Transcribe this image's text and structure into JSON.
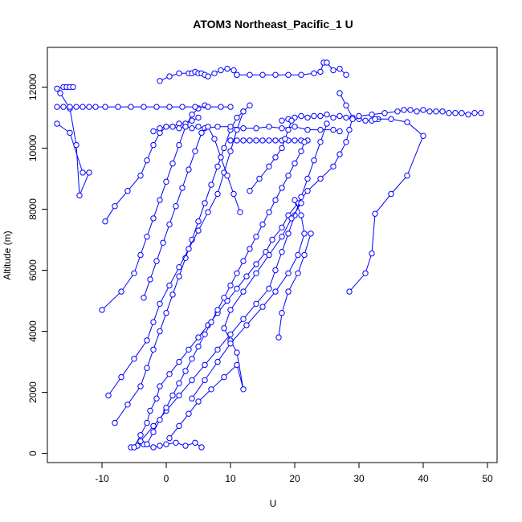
{
  "chart_data": {
    "type": "line",
    "title": "ATOM3 Northeast_Pacific_1 U",
    "xlabel": "U",
    "ylabel": "Altitude (m)",
    "xlim": [
      -18.5,
      51.5
    ],
    "ylim": [
      -300,
      13300
    ],
    "x_ticks": [
      -10,
      0,
      10,
      20,
      30,
      40,
      50
    ],
    "y_ticks": [
      0,
      2000,
      4000,
      6000,
      8000,
      10000,
      12000
    ],
    "grid": false,
    "legend": "none",
    "series_color": "#0000ff",
    "marker": "open-circle",
    "series": [
      {
        "x": [
          -5.5,
          -4.5,
          -3.5,
          -2.0,
          -1.0,
          0.0,
          1.5,
          3.0,
          4.5,
          5.5
        ],
        "y": [
          200,
          250,
          300,
          200,
          250,
          300,
          350,
          250,
          350,
          200
        ]
      },
      {
        "x": [
          -5.0,
          -4.0,
          -3.0,
          -2.5,
          -1.5,
          -1.0,
          0.5,
          2.0,
          3.5,
          5.0,
          6.5,
          8.0,
          9.5,
          11.0,
          12.5,
          14.0,
          15.5,
          16.5,
          18.0,
          19.0,
          20.5,
          22.0,
          24.0,
          26.0,
          27.0,
          28.0,
          28.5,
          29.0,
          28.0,
          27.0
        ],
        "y": [
          200,
          600,
          1000,
          1400,
          1800,
          2200,
          2600,
          3000,
          3400,
          3800,
          4200,
          4600,
          5000,
          5400,
          5800,
          6200,
          6600,
          7000,
          7400,
          7800,
          8200,
          8600,
          9000,
          9400,
          9800,
          10200,
          10600,
          11000,
          11400,
          11800
        ]
      },
      {
        "x": [
          -4.0,
          -2.0,
          0.0,
          2.0,
          4.0,
          6.0,
          8.0,
          10.0,
          12.0,
          14.0,
          16.0,
          17.0,
          18.0,
          19.0,
          20.0,
          21.0,
          22.0,
          23.0,
          24.0,
          25.0
        ],
        "y": [
          400,
          900,
          1400,
          1900,
          2400,
          2900,
          3400,
          3900,
          4400,
          4900,
          5400,
          6000,
          6600,
          7200,
          7800,
          8400,
          9000,
          9600,
          10200,
          10800
        ]
      },
      {
        "x": [
          -8.0,
          -6.0,
          -4.0,
          -3.0,
          -2.0,
          -1.0,
          0.0,
          1.0,
          2.0,
          3.0,
          4.0,
          5.0,
          6.0,
          7.0,
          8.0,
          9.0,
          10.0,
          11.0,
          12.0,
          13.0
        ],
        "y": [
          1000,
          1600,
          2200,
          2800,
          3400,
          4000,
          4600,
          5200,
          5800,
          6400,
          7000,
          7600,
          8200,
          8800,
          9400,
          10000,
          10600,
          11000,
          11200,
          11400
        ]
      },
      {
        "x": [
          -9.0,
          -7.0,
          -5.0,
          -3.0,
          -2.0,
          -1.0,
          0.5,
          2.0,
          3.5,
          5.0,
          6.5,
          8.0,
          9.0,
          10.0,
          11.0,
          12.0
        ],
        "y": [
          1900,
          2500,
          3100,
          3700,
          4300,
          4900,
          5500,
          6100,
          6700,
          7300,
          7900,
          8500,
          9200,
          9900,
          10600,
          11200
        ]
      },
      {
        "x": [
          -10.0,
          -7.0,
          -5.0,
          -4.0,
          -3.0,
          -2.0,
          -1.0,
          0.0,
          1.0,
          2.0,
          3.0,
          4.0,
          5.0,
          6.0
        ],
        "y": [
          4700,
          5300,
          5900,
          6500,
          7100,
          7700,
          8300,
          8900,
          9500,
          10100,
          10700,
          11100,
          11300,
          11400
        ]
      },
      {
        "x": [
          -9.5,
          -8.0,
          -6.0,
          -4.0,
          -3.0,
          -2.0,
          -1.0,
          0.0,
          1.0,
          2.0,
          3.0,
          4.0,
          5.0
        ],
        "y": [
          7600,
          8100,
          8600,
          9100,
          9600,
          10100,
          10500,
          10700,
          10700,
          10800,
          10800,
          10900,
          11000
        ]
      },
      {
        "x": [
          -17.0,
          -15.0,
          -13.0,
          -12.0,
          -13.5,
          -14.0,
          -15.0,
          -16.5
        ],
        "y": [
          10800,
          10500,
          9200,
          9200,
          8450,
          10100,
          11300,
          11800
        ]
      },
      {
        "x": [
          -17.0,
          -16.0,
          -15.0,
          -14.0,
          -13.0,
          -12.0,
          -11.0,
          -9.5,
          -7.5,
          -5.5,
          -3.5,
          -1.5,
          0.5,
          2.5,
          4.5,
          6.5,
          8.5,
          10.0
        ],
        "y": [
          11350,
          11350,
          11350,
          11350,
          11350,
          11350,
          11350,
          11350,
          11350,
          11350,
          11350,
          11350,
          11350,
          11350,
          11350,
          11350,
          11350,
          11350
        ]
      },
      {
        "x": [
          -17.0,
          -16.0,
          -15.5,
          -15.0,
          -14.5
        ],
        "y": [
          11950,
          12000,
          12000,
          12000,
          12000
        ]
      },
      {
        "x": [
          -2.0,
          -1.0,
          0.0,
          1.0,
          2.0,
          3.0,
          4.0,
          5.0,
          6.0,
          8.0,
          10.0,
          12.0,
          14.0,
          16.0,
          18.0,
          20.0,
          22.0,
          24.0,
          26.0,
          27.0
        ],
        "y": [
          10550,
          10650,
          10700,
          10700,
          10650,
          10700,
          10650,
          10700,
          10650,
          10700,
          10700,
          10650,
          10650,
          10700,
          10650,
          10700,
          10600,
          10600,
          10600,
          10550
        ]
      },
      {
        "x": [
          10.0,
          11.0,
          12.0,
          13.0,
          14.0,
          15.0,
          16.0,
          17.0,
          18.0,
          19.0,
          20.0,
          21.0,
          22.0
        ],
        "y": [
          10250,
          10250,
          10250,
          10250,
          10250,
          10250,
          10250,
          10250,
          10250,
          10250,
          10250,
          10250,
          10250
        ]
      },
      {
        "x": [
          18.0,
          19.0,
          20.0,
          21.0,
          22.0,
          23.0,
          24.0,
          25.0,
          26.0,
          27.0,
          28.0,
          29.0,
          30.0,
          31.0,
          32.0,
          33.0
        ],
        "y": [
          10900,
          10950,
          11000,
          11050,
          11000,
          11050,
          11050,
          11100,
          11000,
          11050,
          11000,
          10950,
          10950,
          10900,
          10900,
          10950
        ]
      },
      {
        "x": [
          30.0,
          32.0,
          34.0,
          36.0,
          37.0,
          38.0,
          39.0,
          40.0,
          41.0,
          42.0,
          43.0,
          44.0,
          45.0,
          46.0,
          47.0,
          48.0,
          49.0
        ],
        "y": [
          11050,
          11100,
          11150,
          11200,
          11250,
          11250,
          11200,
          11250,
          11200,
          11200,
          11200,
          11150,
          11150,
          11150,
          11100,
          11150,
          11150
        ]
      },
      {
        "x": [
          28.5,
          31.0,
          32.0,
          32.5,
          35.0,
          37.5,
          40.0,
          37.5,
          35.0,
          32.5
        ],
        "y": [
          5300,
          5900,
          6550,
          7850,
          8500,
          9100,
          10400,
          10850,
          10950,
          10950
        ]
      },
      {
        "x": [
          -1.0,
          0.5,
          2.0,
          3.5,
          4.0,
          4.5,
          5.0,
          5.5,
          6.0,
          6.5,
          7.5,
          8.5,
          9.5,
          10.5,
          11.0
        ],
        "y": [
          12200,
          12350,
          12450,
          12450,
          12450,
          12500,
          12450,
          12450,
          12400,
          12350,
          12450,
          12550,
          12600,
          12550,
          12400
        ]
      },
      {
        "x": [
          11.0,
          13.0,
          15.0,
          17.0,
          19.0,
          21.0,
          23.0,
          24.0,
          24.5,
          25.0,
          26.0,
          27.0,
          28.0
        ],
        "y": [
          12400,
          12400,
          12400,
          12400,
          12400,
          12400,
          12450,
          12500,
          12800,
          12800,
          12550,
          12600,
          12400
        ]
      },
      {
        "x": [
          -3.0,
          -2.0,
          -1.0,
          0.0,
          1.0,
          2.0,
          3.0,
          4.0,
          5.0,
          6.0,
          7.0,
          8.0,
          9.0,
          10.0,
          11.0,
          12.0,
          13.0,
          14.0,
          15.0,
          16.0,
          17.0,
          18.0,
          19.0,
          20.0,
          21.0,
          21.5
        ],
        "y": [
          300,
          700,
          1100,
          1500,
          1900,
          2300,
          2700,
          3100,
          3500,
          3900,
          4300,
          4700,
          5100,
          5500,
          5900,
          6300,
          6700,
          7100,
          7500,
          7900,
          8300,
          8700,
          9100,
          9500,
          9900,
          10200
        ]
      },
      {
        "x": [
          0.5,
          2.0,
          3.5,
          5.0,
          7.0,
          9.0,
          11.0,
          12.0,
          11.0,
          10.0,
          9.0,
          10.0,
          12.0,
          14.0,
          16.0,
          18.0,
          19.5,
          21.0
        ],
        "y": [
          500,
          900,
          1300,
          1700,
          2100,
          2500,
          2900,
          2100,
          3300,
          3700,
          4100,
          4700,
          5300,
          5900,
          6500,
          7100,
          7700,
          8200
        ]
      },
      {
        "x": [
          4.0,
          6.0,
          8.0,
          10.0,
          12.5,
          15.0,
          17.0,
          19.0,
          20.5,
          21.5,
          21.0,
          20.0
        ],
        "y": [
          1800,
          2400,
          3000,
          3600,
          4200,
          4800,
          5300,
          5900,
          6500,
          7200,
          7800,
          8300
        ]
      },
      {
        "x": [
          -3.5,
          -2.5,
          -1.5,
          -0.5,
          0.5,
          1.5,
          2.5,
          3.5,
          4.5,
          5.5,
          6.5,
          7.5,
          8.5,
          9.5,
          10.5,
          11.5
        ],
        "y": [
          5100,
          5700,
          6300,
          6900,
          7500,
          8100,
          8700,
          9300,
          9900,
          10500,
          10700,
          10300,
          9700,
          9100,
          8500,
          7900
        ]
      },
      {
        "x": [
          17.5,
          18.0,
          19.0,
          20.5,
          21.5,
          22.5
        ],
        "y": [
          3800,
          4600,
          5300,
          5900,
          6500,
          7200
        ]
      },
      {
        "x": [
          13.0,
          14.5,
          16.0,
          17.0,
          18.0,
          18.5,
          19.0,
          19.5
        ],
        "y": [
          8600,
          9000,
          9400,
          9700,
          10000,
          10300,
          10600,
          10900
        ]
      }
    ]
  }
}
